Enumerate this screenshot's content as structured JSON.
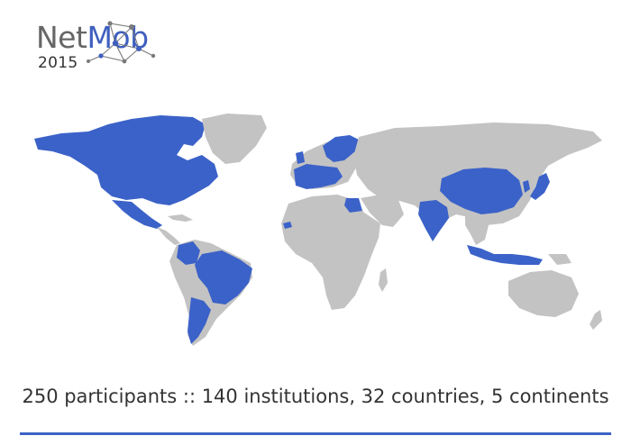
{
  "logo": {
    "word_part1": "Net",
    "word_part2": "Mob",
    "year": "2015",
    "icon": "network-graph-icon"
  },
  "caption": "250 participants :: 140 institutions, 32 countries, 5 continents",
  "colors": {
    "participant_country": "#3b62c8",
    "other_land": "#c3c3c3",
    "rule": "#3b64c5",
    "logo_accent": "#3f5fbf",
    "logo_text": "#666666"
  },
  "map": {
    "highlighted_regions": [
      "Canada",
      "United States",
      "Mexico",
      "Colombia",
      "Brazil",
      "Argentina",
      "Western Europe",
      "Scandinavia",
      "Egypt",
      "Senegal",
      "India",
      "China",
      "Japan",
      "South Korea",
      "Indonesia"
    ]
  }
}
